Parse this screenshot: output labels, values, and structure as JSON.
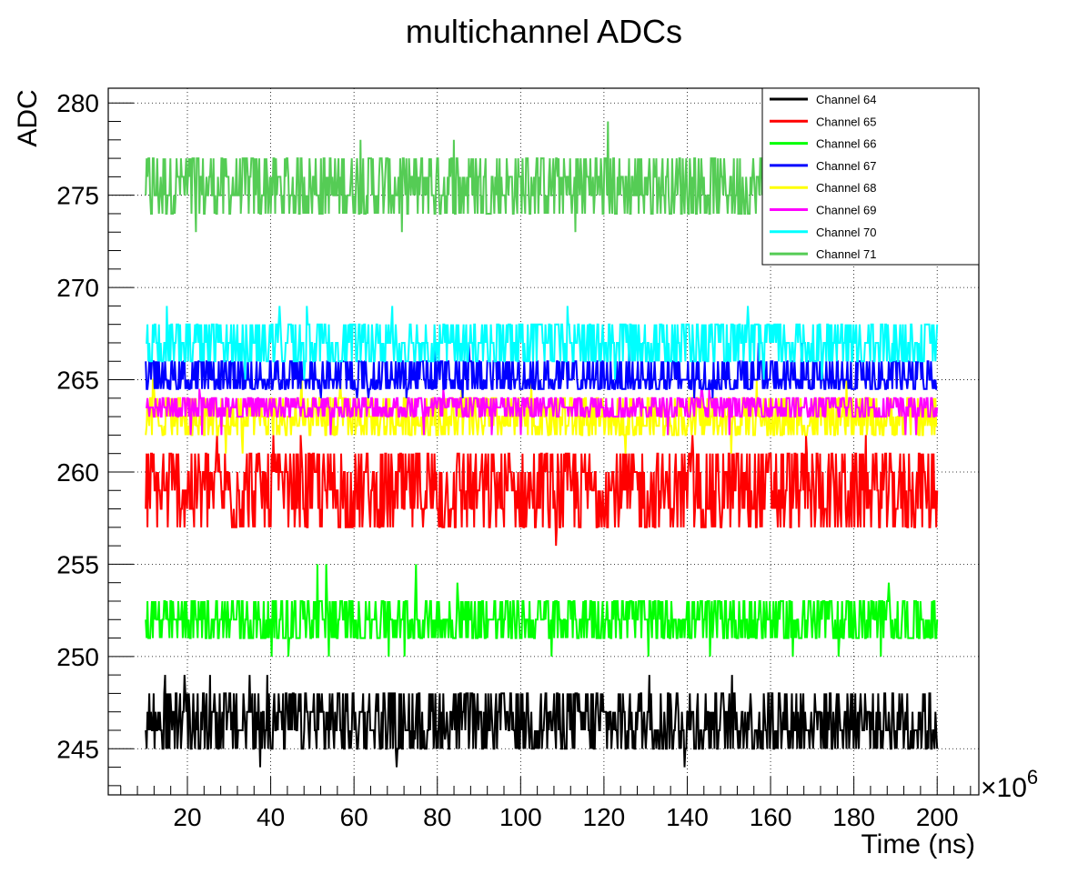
{
  "chart_data": {
    "type": "line",
    "title": "multichannel ADCs",
    "xlabel": "Time (ns)",
    "ylabel": "ADC",
    "x_exponent": "×10",
    "x_exponent_power": "6",
    "xlim": [
      1,
      210
    ],
    "ylim": [
      242.5,
      280.8
    ],
    "x_range": [
      10,
      200
    ],
    "x_ticks": [
      20,
      40,
      60,
      80,
      100,
      120,
      140,
      160,
      180,
      200
    ],
    "y_ticks": [
      245,
      250,
      255,
      260,
      265,
      270,
      275,
      280
    ],
    "grid": true,
    "legend_position": "top-right",
    "series": [
      {
        "name": "Channel 64",
        "color": "#000000",
        "levels": [
          245,
          246,
          247,
          248
        ],
        "min": 244,
        "max": 249,
        "rare_low": [
          244,
          245.5
        ],
        "rare_high": [
          249
        ]
      },
      {
        "name": "Channel 65",
        "color": "#ff0000",
        "levels": [
          257,
          258,
          259,
          260,
          261
        ],
        "min": 256,
        "max": 262,
        "rare_low": [
          256,
          257
        ],
        "rare_high": [
          262
        ]
      },
      {
        "name": "Channel 66",
        "color": "#00ff00",
        "levels": [
          251,
          252,
          253
        ],
        "min": 250,
        "max": 255,
        "rare_low": [
          250
        ],
        "rare_high": [
          254,
          255
        ]
      },
      {
        "name": "Channel 67",
        "color": "#0000ff",
        "levels": [
          264.5,
          265,
          266
        ],
        "min": 264,
        "max": 267,
        "rare_low": [
          264
        ],
        "rare_high": [
          267
        ]
      },
      {
        "name": "Channel 68",
        "color": "#ffff00",
        "levels": [
          262,
          262.5,
          263,
          264
        ],
        "min": 261,
        "max": 265,
        "rare_low": [
          261
        ],
        "rare_high": [
          265
        ]
      },
      {
        "name": "Channel 69",
        "color": "#ff00ff",
        "levels": [
          263,
          263.5,
          264
        ],
        "min": 262,
        "max": 264.5,
        "rare_low": [
          262
        ],
        "rare_high": [
          264.5
        ]
      },
      {
        "name": "Channel 70",
        "color": "#00ffff",
        "levels": [
          266,
          267,
          268
        ],
        "min": 265,
        "max": 269,
        "rare_low": [
          265
        ],
        "rare_high": [
          269
        ]
      },
      {
        "name": "Channel 71",
        "color": "#55cc55",
        "levels": [
          274,
          275,
          276,
          277
        ],
        "min": 273,
        "max": 279,
        "rare_low": [
          273
        ],
        "rare_high": [
          278,
          279
        ]
      }
    ]
  }
}
